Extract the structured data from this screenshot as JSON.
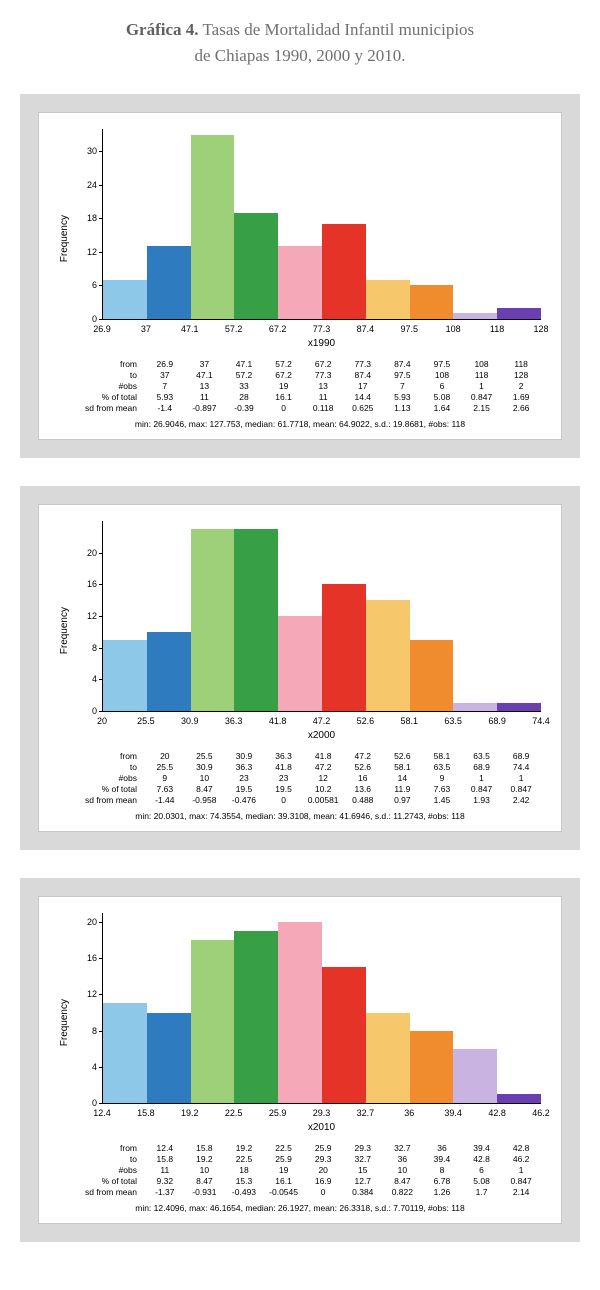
{
  "title_bold": "Gráfica 4.",
  "title_rest": " Tasas de Mortalidad Infantil municipios",
  "subtitle": "de Chiapas 1990, 2000 y 2010.",
  "ylabel": "Frequency",
  "bar_colors": [
    "#8dc8e8",
    "#2e7cbf",
    "#9ed07a",
    "#37a047",
    "#f5a9b8",
    "#e53427",
    "#f7c76b",
    "#f08b2e",
    "#c9b3e0",
    "#6a3fb0"
  ],
  "axis_color": "#000000",
  "panels": [
    {
      "xlabel": "x1990",
      "yticks": [
        0,
        6,
        12,
        18,
        24,
        30
      ],
      "ymax": 34,
      "xticks": [
        "26.9",
        "37",
        "47.1",
        "57.2",
        "67.2",
        "77.3",
        "87.4",
        "97.5",
        "108",
        "118",
        "128"
      ],
      "obs": [
        7,
        13,
        33,
        19,
        13,
        17,
        7,
        6,
        1,
        2
      ],
      "rows": [
        {
          "label": "from",
          "vals": [
            "26.9",
            "37",
            "47.1",
            "57.2",
            "67.2",
            "77.3",
            "87.4",
            "97.5",
            "108",
            "118"
          ]
        },
        {
          "label": "to",
          "vals": [
            "37",
            "47.1",
            "57.2",
            "67.2",
            "77.3",
            "87.4",
            "97.5",
            "108",
            "118",
            "128"
          ]
        },
        {
          "label": "#obs",
          "vals": [
            "7",
            "13",
            "33",
            "19",
            "13",
            "17",
            "7",
            "6",
            "1",
            "2"
          ]
        },
        {
          "label": "% of total",
          "vals": [
            "5.93",
            "11",
            "28",
            "16.1",
            "11",
            "14.4",
            "5.93",
            "5.08",
            "0.847",
            "1.69"
          ]
        },
        {
          "label": "sd from mean",
          "vals": [
            "-1.4",
            "-0.897",
            "-0.39",
            "0",
            "0.118",
            "0.625",
            "1.13",
            "1.64",
            "2.15",
            "2.66"
          ]
        }
      ],
      "summary": "min: 26.9046, max: 127.753, median: 61.7718, mean: 64.9022, s.d.: 19.8681, #obs: 118"
    },
    {
      "xlabel": "x2000",
      "yticks": [
        0,
        4,
        8,
        12,
        16,
        20
      ],
      "ymax": 24,
      "xticks": [
        "20",
        "25.5",
        "30.9",
        "36.3",
        "41.8",
        "47.2",
        "52.6",
        "58.1",
        "63.5",
        "68.9",
        "74.4"
      ],
      "obs": [
        9,
        10,
        23,
        23,
        12,
        16,
        14,
        9,
        1,
        1
      ],
      "rows": [
        {
          "label": "from",
          "vals": [
            "20",
            "25.5",
            "30.9",
            "36.3",
            "41.8",
            "47.2",
            "52.6",
            "58.1",
            "63.5",
            "68.9"
          ]
        },
        {
          "label": "to",
          "vals": [
            "25.5",
            "30.9",
            "36.3",
            "41.8",
            "47.2",
            "52.6",
            "58.1",
            "63.5",
            "68.9",
            "74.4"
          ]
        },
        {
          "label": "#obs",
          "vals": [
            "9",
            "10",
            "23",
            "23",
            "12",
            "16",
            "14",
            "9",
            "1",
            "1"
          ]
        },
        {
          "label": "% of total",
          "vals": [
            "7.63",
            "8.47",
            "19.5",
            "19.5",
            "10.2",
            "13.6",
            "11.9",
            "7.63",
            "0.847",
            "0.847"
          ]
        },
        {
          "label": "sd from mean",
          "vals": [
            "-1.44",
            "-0.958",
            "-0.476",
            "0",
            "0.00581",
            "0.488",
            "0.97",
            "1.45",
            "1.93",
            "2.42"
          ]
        }
      ],
      "summary": "min: 20.0301, max: 74.3554, median: 39.3108, mean: 41.6946, s.d.: 11.2743, #obs: 118"
    },
    {
      "xlabel": "x2010",
      "yticks": [
        0,
        4,
        8,
        12,
        16,
        20
      ],
      "ymax": 21,
      "xticks": [
        "12.4",
        "15.8",
        "19.2",
        "22.5",
        "25.9",
        "29.3",
        "32.7",
        "36",
        "39.4",
        "42.8",
        "46.2"
      ],
      "obs": [
        11,
        10,
        18,
        19,
        20,
        15,
        10,
        8,
        6,
        1
      ],
      "rows": [
        {
          "label": "from",
          "vals": [
            "12.4",
            "15.8",
            "19.2",
            "22.5",
            "25.9",
            "29.3",
            "32.7",
            "36",
            "39.4",
            "42.8"
          ]
        },
        {
          "label": "to",
          "vals": [
            "15.8",
            "19.2",
            "22.5",
            "25.9",
            "29.3",
            "32.7",
            "36",
            "39.4",
            "42.8",
            "46.2"
          ]
        },
        {
          "label": "#obs",
          "vals": [
            "11",
            "10",
            "18",
            "19",
            "20",
            "15",
            "10",
            "8",
            "6",
            "1"
          ]
        },
        {
          "label": "% of total",
          "vals": [
            "9.32",
            "8.47",
            "15.3",
            "16.1",
            "16.9",
            "12.7",
            "8.47",
            "6.78",
            "5.08",
            "0.847"
          ]
        },
        {
          "label": "sd from mean",
          "vals": [
            "-1.37",
            "-0.931",
            "-0.493",
            "-0.0545",
            "0",
            "0.384",
            "0.822",
            "1.26",
            "1.7",
            "2.14"
          ]
        }
      ],
      "summary": "min: 12.4096, max: 46.1654, median: 26.1927, mean: 26.3318, s.d.: 7.70119, #obs: 118"
    }
  ]
}
